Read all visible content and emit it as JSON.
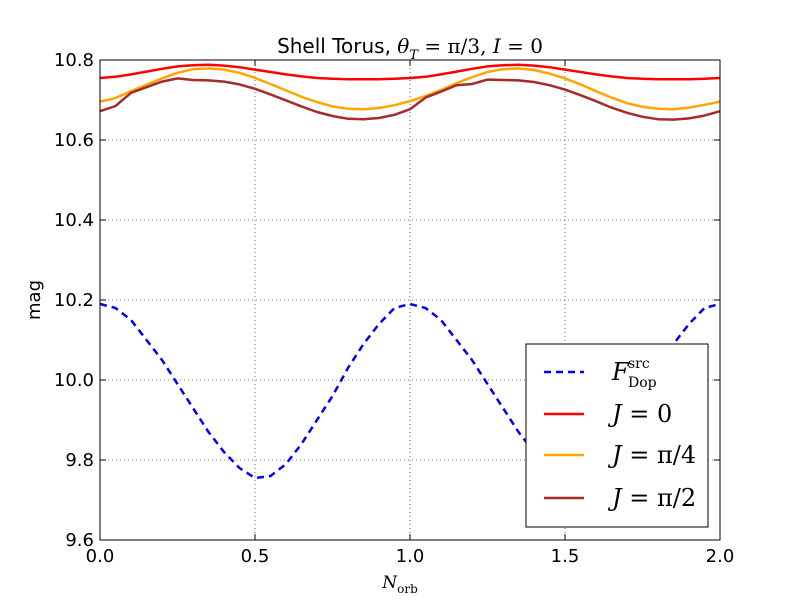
{
  "chart_data": {
    "type": "line",
    "title": {
      "text": "Shell Torus, ",
      "math_theta": "θ",
      "math_theta_sub": "T",
      "math_theta_val": " = π/3, ",
      "math_I": "I",
      "math_I_val": " = 0"
    },
    "xlabel": {
      "base": "N",
      "sub": "orb"
    },
    "ylabel": "mag",
    "xlim": [
      0.0,
      2.0
    ],
    "ylim": [
      9.6,
      10.8
    ],
    "xticks": [
      "0.0",
      "0.5",
      "1.0",
      "1.5",
      "2.0"
    ],
    "yticks": [
      "9.6",
      "9.8",
      "10.0",
      "10.2",
      "10.4",
      "10.6",
      "10.8"
    ],
    "grid": true,
    "legend_position": "lower-right",
    "series": [
      {
        "name_base": "F",
        "name_sup": "src",
        "name_sub": "Dop",
        "color": "#0000ff",
        "style": "dashed",
        "x": [
          0.0,
          0.05,
          0.1,
          0.15,
          0.2,
          0.25,
          0.3,
          0.35,
          0.4,
          0.45,
          0.5,
          0.55,
          0.6,
          0.65,
          0.7,
          0.75,
          0.8,
          0.85,
          0.9,
          0.95,
          1.0,
          1.05,
          1.1,
          1.15,
          1.2,
          1.25,
          1.3,
          1.35,
          1.4,
          1.45,
          1.5,
          1.55,
          1.6,
          1.65,
          1.7,
          1.75,
          1.8,
          1.85,
          1.9,
          1.95,
          2.0
        ],
        "y": [
          10.19,
          10.18,
          10.15,
          10.1,
          10.05,
          9.99,
          9.93,
          9.87,
          9.82,
          9.78,
          9.755,
          9.76,
          9.79,
          9.84,
          9.9,
          9.96,
          10.03,
          10.09,
          10.14,
          10.18,
          10.19,
          10.18,
          10.15,
          10.1,
          10.05,
          9.99,
          9.93,
          9.87,
          9.82,
          9.78,
          9.755,
          9.76,
          9.79,
          9.84,
          9.9,
          9.96,
          10.03,
          10.09,
          10.14,
          10.18,
          10.19
        ]
      },
      {
        "name_base": "J",
        "name_val": " = 0",
        "color": "#ff0000",
        "style": "solid",
        "x": [
          0.0,
          0.05,
          0.1,
          0.15,
          0.2,
          0.25,
          0.3,
          0.35,
          0.4,
          0.45,
          0.5,
          0.55,
          0.6,
          0.65,
          0.7,
          0.75,
          0.8,
          0.85,
          0.9,
          0.95,
          1.0,
          1.05,
          1.1,
          1.15,
          1.2,
          1.25,
          1.3,
          1.35,
          1.4,
          1.45,
          1.5,
          1.55,
          1.6,
          1.65,
          1.7,
          1.75,
          1.8,
          1.85,
          1.9,
          1.95,
          2.0
        ],
        "y": [
          10.755,
          10.758,
          10.764,
          10.771,
          10.778,
          10.784,
          10.787,
          10.788,
          10.786,
          10.782,
          10.776,
          10.77,
          10.764,
          10.759,
          10.755,
          10.753,
          10.752,
          10.752,
          10.752,
          10.753,
          10.755,
          10.758,
          10.764,
          10.771,
          10.778,
          10.784,
          10.787,
          10.788,
          10.786,
          10.782,
          10.776,
          10.77,
          10.764,
          10.759,
          10.755,
          10.753,
          10.752,
          10.752,
          10.752,
          10.753,
          10.755
        ]
      },
      {
        "name_base": "J",
        "name_val": " = π/4",
        "color": "#ffa500",
        "style": "solid",
        "x": [
          0.0,
          0.05,
          0.1,
          0.15,
          0.2,
          0.25,
          0.3,
          0.35,
          0.4,
          0.45,
          0.5,
          0.55,
          0.6,
          0.65,
          0.7,
          0.75,
          0.8,
          0.85,
          0.9,
          0.95,
          1.0,
          1.05,
          1.1,
          1.15,
          1.2,
          1.25,
          1.3,
          1.35,
          1.4,
          1.45,
          1.5,
          1.55,
          1.6,
          1.65,
          1.7,
          1.75,
          1.8,
          1.85,
          1.9,
          1.95,
          2.0
        ],
        "y": [
          10.696,
          10.705,
          10.722,
          10.738,
          10.754,
          10.768,
          10.777,
          10.779,
          10.776,
          10.768,
          10.755,
          10.74,
          10.724,
          10.708,
          10.695,
          10.684,
          10.678,
          10.677,
          10.68,
          10.687,
          10.697,
          10.71,
          10.725,
          10.742,
          10.757,
          10.77,
          10.777,
          10.779,
          10.775,
          10.766,
          10.754,
          10.739,
          10.722,
          10.706,
          10.692,
          10.683,
          10.678,
          10.677,
          10.681,
          10.688,
          10.696
        ]
      },
      {
        "name_base": "J",
        "name_val": " = π/2",
        "color": "#a52a2a",
        "style": "solid",
        "x": [
          0.0,
          0.05,
          0.1,
          0.15,
          0.2,
          0.25,
          0.3,
          0.35,
          0.4,
          0.45,
          0.5,
          0.55,
          0.6,
          0.65,
          0.7,
          0.75,
          0.8,
          0.85,
          0.9,
          0.95,
          1.0,
          1.05,
          1.1,
          1.15,
          1.2,
          1.25,
          1.3,
          1.35,
          1.4,
          1.45,
          1.5,
          1.55,
          1.6,
          1.65,
          1.7,
          1.75,
          1.8,
          1.85,
          1.9,
          1.95,
          2.0
        ],
        "y": [
          10.672,
          10.685,
          10.718,
          10.732,
          10.746,
          10.754,
          10.75,
          10.749,
          10.746,
          10.739,
          10.728,
          10.714,
          10.699,
          10.684,
          10.67,
          10.66,
          10.653,
          10.652,
          10.655,
          10.663,
          10.677,
          10.706,
          10.721,
          10.737,
          10.74,
          10.751,
          10.75,
          10.749,
          10.745,
          10.737,
          10.726,
          10.712,
          10.697,
          10.681,
          10.668,
          10.658,
          10.652,
          10.651,
          10.654,
          10.661,
          10.672
        ]
      }
    ]
  }
}
